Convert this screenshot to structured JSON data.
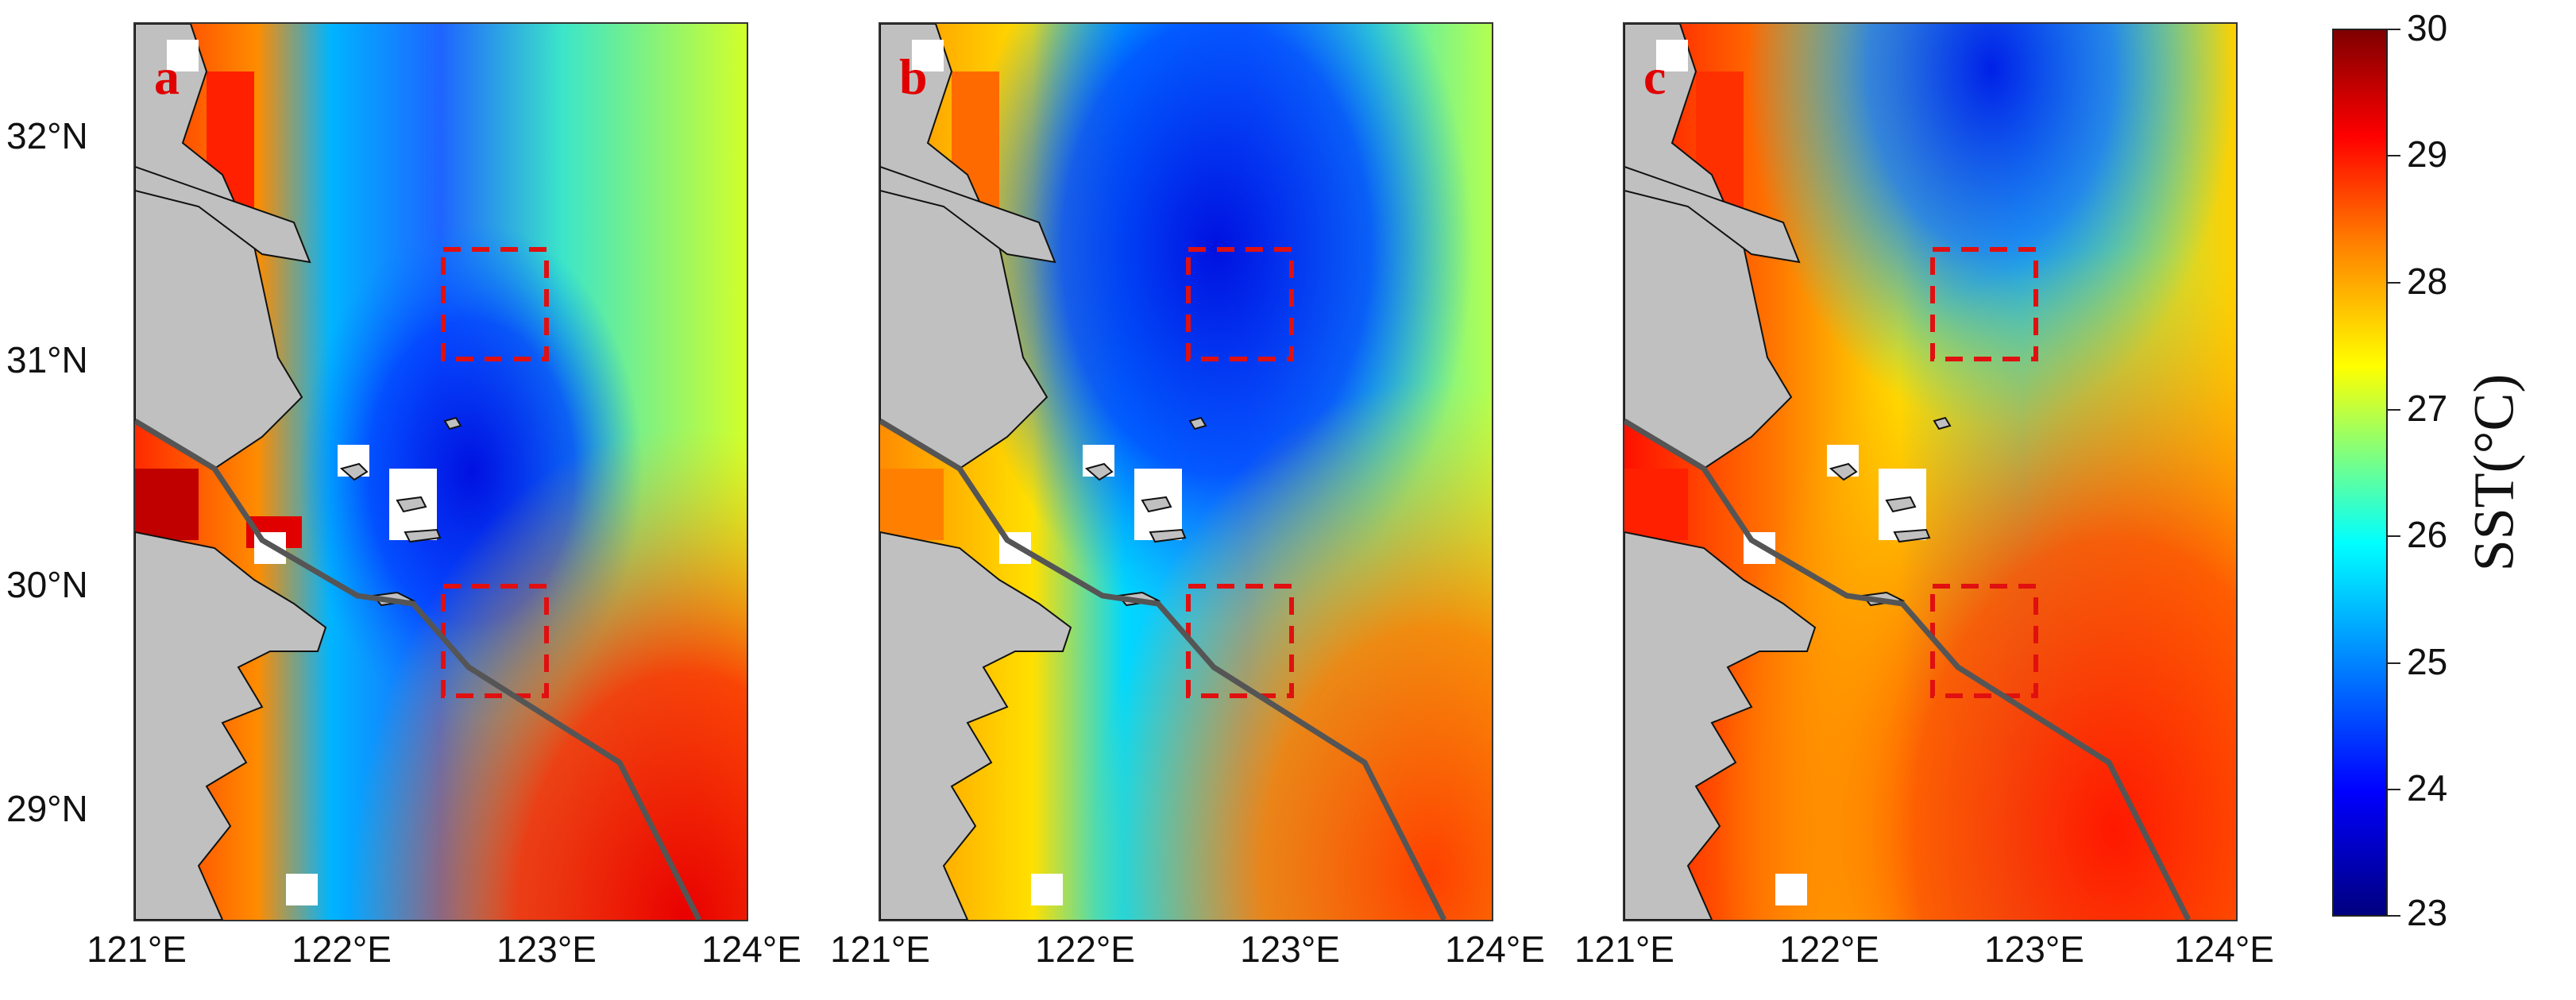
{
  "panels": [
    {
      "letter": "a"
    },
    {
      "letter": "b"
    },
    {
      "letter": "c"
    }
  ],
  "axes": {
    "y_ticks": [
      "32°N",
      "31°N",
      "30°N",
      "29°N"
    ],
    "x_ticks": [
      "121°E",
      "122°E",
      "123°E",
      "124°E"
    ],
    "lon_range": [
      121,
      124
    ],
    "lat_range": [
      28.5,
      32.5
    ]
  },
  "colorbar": {
    "title": "SST(°C)",
    "ticks": [
      "30",
      "29",
      "28",
      "27",
      "26",
      "25",
      "24",
      "23"
    ],
    "range": [
      23,
      30
    ],
    "colormap": "jet"
  },
  "overlays": {
    "boxes_color": "#e01010",
    "track_color": "#555555",
    "land_color": "#c0c0c0"
  }
}
